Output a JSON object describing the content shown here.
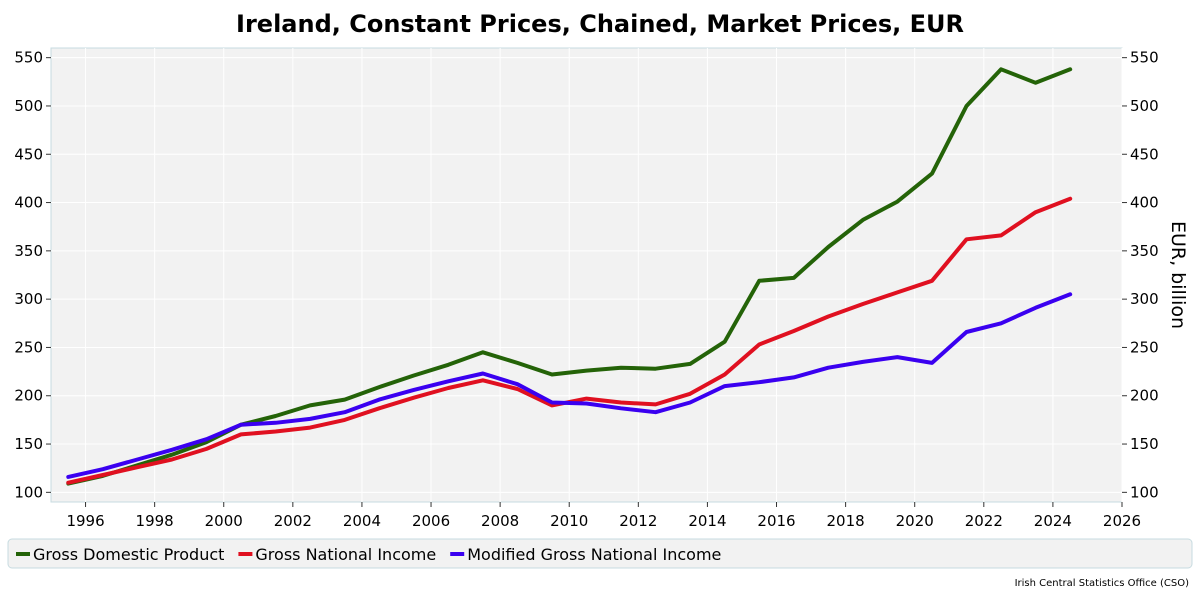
{
  "chart_data": {
    "type": "line",
    "title": "Ireland, Constant Prices, Chained, Market Prices, EUR",
    "ylabel": "EUR, billion",
    "xlabel": "",
    "xlim": [
      1995,
      2026
    ],
    "ylim": [
      90,
      560
    ],
    "x_ticks": [
      1996,
      1998,
      2000,
      2002,
      2004,
      2006,
      2008,
      2010,
      2012,
      2014,
      2016,
      2018,
      2020,
      2022,
      2024,
      2026
    ],
    "y_ticks": [
      100,
      150,
      200,
      250,
      300,
      350,
      400,
      450,
      500,
      550
    ],
    "x": [
      1995.5,
      1996.5,
      1997.5,
      1998.5,
      1999.5,
      2000.5,
      2001.5,
      2002.5,
      2003.5,
      2004.5,
      2005.5,
      2006.5,
      2007.5,
      2008.5,
      2009.5,
      2010.5,
      2011.5,
      2012.5,
      2013.5,
      2014.5,
      2015.5,
      2016.5,
      2017.5,
      2018.5,
      2019.5,
      2020.5,
      2021.5,
      2022.5,
      2023.5,
      2024.5
    ],
    "series": [
      {
        "name": "Gross Domestic Product",
        "color": "#246308",
        "values": [
          109,
          117,
          128,
          139,
          152,
          170,
          179,
          190,
          196,
          209,
          221,
          232,
          245,
          234,
          222,
          226,
          229,
          228,
          233,
          256,
          319,
          322,
          354,
          382,
          401,
          430,
          500,
          538,
          524,
          538
        ]
      },
      {
        "name": "Gross National Income",
        "color": "#e01020",
        "values": [
          110,
          118,
          126,
          134,
          145,
          160,
          163,
          167,
          175,
          187,
          198,
          208,
          216,
          207,
          190,
          197,
          193,
          191,
          202,
          222,
          253,
          267,
          282,
          295,
          307,
          319,
          362,
          366,
          390,
          404
        ]
      },
      {
        "name": "Modified Gross National Income",
        "color": "#3a00f0",
        "values": [
          116,
          124,
          134,
          144,
          155,
          170,
          172,
          176,
          183,
          196,
          206,
          215,
          223,
          212,
          193,
          192,
          187,
          183,
          193,
          210,
          214,
          219,
          229,
          235,
          240,
          234,
          266,
          275,
          291,
          305
        ]
      }
    ],
    "grid": true,
    "legend_position": "bottom",
    "source": "Irish Central Statistics Office (CSO)"
  }
}
